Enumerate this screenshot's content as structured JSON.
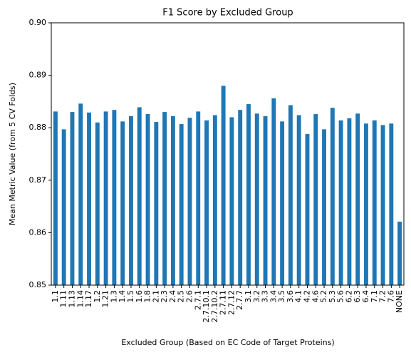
{
  "chart_data": {
    "type": "bar",
    "title": "F1 Score by Excluded Group",
    "x_label": "Excluded Group (Based on EC Code of Target Proteins)",
    "y_label": "Mean Metric Value (from 5 CV Folds)",
    "categories": [
      "1.1",
      "1.11",
      "1.13",
      "1.14",
      "1.17",
      "1.2",
      "1.21",
      "1.3",
      "1.4",
      "1.5",
      "1.6",
      "1.8",
      "2.1",
      "2.3",
      "2.4",
      "2.5",
      "2.6",
      "2.7.1",
      "2.7.10.1",
      "2.7.10.2",
      "2.7.11",
      "2.7.12",
      "2.7.7",
      "3.1",
      "3.2",
      "3.3",
      "3.4",
      "3.5",
      "3.6",
      "4.1",
      "4.2",
      "4.6",
      "5.2",
      "5.3",
      "5.6",
      "6.2",
      "6.3",
      "6.4",
      "7.1",
      "7.2",
      "7.6",
      "NONE"
    ],
    "values": [
      0.8831,
      0.8797,
      0.883,
      0.8846,
      0.8829,
      0.881,
      0.8831,
      0.8834,
      0.8812,
      0.8822,
      0.8839,
      0.8826,
      0.8811,
      0.883,
      0.8822,
      0.8807,
      0.8819,
      0.8831,
      0.8814,
      0.8824,
      0.888,
      0.882,
      0.8834,
      0.8845,
      0.8827,
      0.8822,
      0.8856,
      0.8812,
      0.8843,
      0.8824,
      0.8788,
      0.8826,
      0.8797,
      0.8838,
      0.8814,
      0.8818,
      0.8827,
      0.8808,
      0.8814,
      0.8805,
      0.8808,
      0.8621
    ],
    "color": "#1f77b4",
    "ylim": [
      0.85,
      0.9
    ],
    "yticks": [
      0.85,
      0.86,
      0.87,
      0.88,
      0.89,
      {
        "value": 0.9,
        "label": "0.90"
      }
    ]
  }
}
